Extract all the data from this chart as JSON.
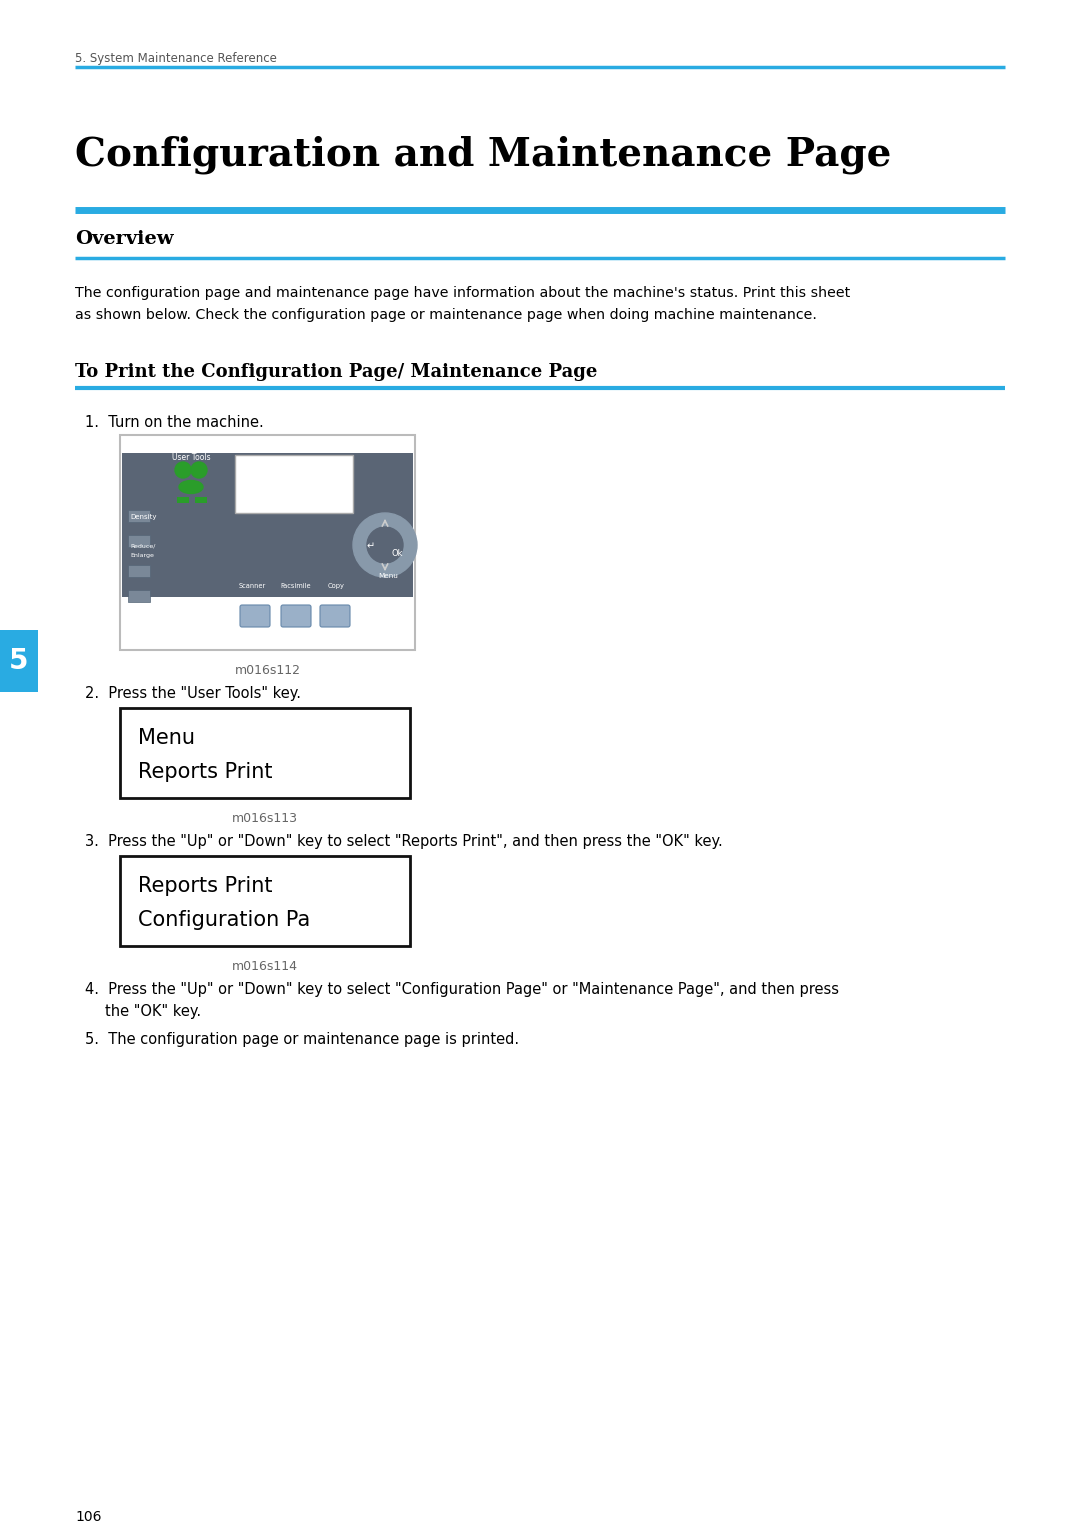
{
  "page_bg": "#ffffff",
  "accent_color": "#29ABE2",
  "text_color": "#000000",
  "gray_text": "#666666",
  "header_text": "5. System Maintenance Reference",
  "title": "Configuration and Maintenance Page",
  "section1_label": "Overview",
  "overview_body1": "The configuration page and maintenance page have information about the machine's status. Print this sheet",
  "overview_body2": "as shown below. Check the configuration page or maintenance page when doing machine maintenance.",
  "subsection_label": "To Print the Configuration Page/ Maintenance Page",
  "step1": "1.  Turn on the machine.",
  "step1_img_caption": "m016s112",
  "step2": "2.  Press the \"User Tools\" key.",
  "step2_img_line1": "Menu",
  "step2_img_line2": "Reports Print",
  "step2_img_caption": "m016s113",
  "step3": "3.  Press the \"Up\" or \"Down\" key to select \"Reports Print\", and then press the \"OK\" key.",
  "step3_img_line1": "Reports Print",
  "step3_img_line2": "Configuration Pa",
  "step3_img_caption": "m016s114",
  "step4a": "4.  Press the \"Up\" or \"Down\" key to select \"Configuration Page\" or \"Maintenance Page\", and then press",
  "step4b": "    the \"OK\" key.",
  "step5": "5.  The configuration page or maintenance page is printed.",
  "page_number": "106",
  "tab_number": "5",
  "tab_color": "#29ABE2",
  "panel_bg": "#5a6575",
  "green_color": "#2a9d2a",
  "btn_color": "#8899aa"
}
